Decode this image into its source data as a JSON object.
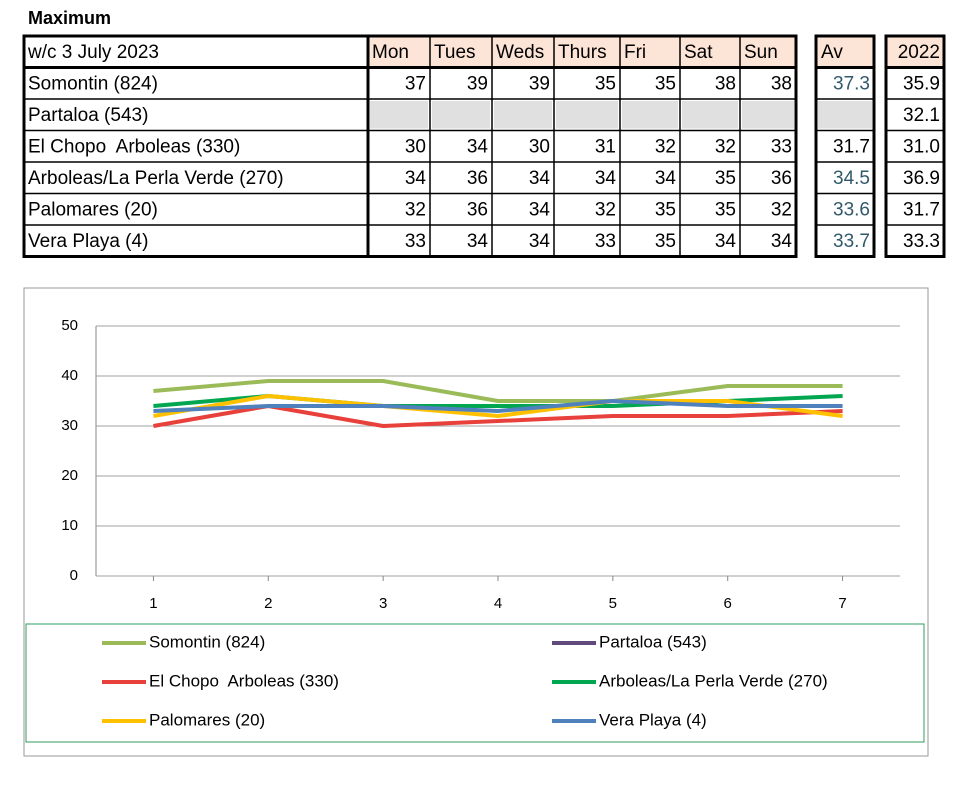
{
  "title": "Maximum",
  "table": {
    "header": [
      "w/c 3 July 2023",
      "Mon",
      "Tues",
      "Weds",
      "Thurs",
      "Fri",
      "Sat",
      "Sun"
    ],
    "av_header": "Av",
    "prev_header": "2022",
    "rows": [
      {
        "name": "Somontin (824)",
        "values": [
          37,
          39,
          39,
          35,
          35,
          38,
          38
        ],
        "av": "37.3",
        "av_color": "#31596b",
        "prev": "35.9"
      },
      {
        "name": "Partaloa (543)",
        "values": [
          null,
          null,
          null,
          null,
          null,
          null,
          null
        ],
        "av": null,
        "prev": "32.1"
      },
      {
        "name": "El Chopo  Arboleas (330)",
        "values": [
          30,
          34,
          30,
          31,
          32,
          32,
          33
        ],
        "av": "31.7",
        "av_color": "#000000",
        "prev": "31.0"
      },
      {
        "name": "Arboleas/La Perla Verde (270)",
        "values": [
          34,
          36,
          34,
          34,
          34,
          35,
          36
        ],
        "av": "34.5",
        "av_color": "#31596b",
        "prev": "36.9"
      },
      {
        "name": "Palomares (20)",
        "values": [
          32,
          36,
          34,
          32,
          35,
          35,
          32
        ],
        "av": "33.6",
        "av_color": "#31596b",
        "prev": "31.7"
      },
      {
        "name": "Vera Playa (4)",
        "values": [
          33,
          34,
          34,
          33,
          35,
          34,
          34
        ],
        "av": "33.7",
        "av_color": "#31596b",
        "prev": "33.3"
      }
    ]
  },
  "chart_data": {
    "type": "line",
    "x": [
      1,
      2,
      3,
      4,
      5,
      6,
      7
    ],
    "xlim": [
      0.5,
      7.5
    ],
    "ylim": [
      0,
      50
    ],
    "yticks": [
      0,
      10,
      20,
      30,
      40,
      50
    ],
    "grid": true,
    "legend": "bottom",
    "series": [
      {
        "name": "Somontin (824)",
        "color": "#9bbb59",
        "values": [
          37,
          39,
          39,
          35,
          35,
          38,
          38
        ]
      },
      {
        "name": "Partaloa (543)",
        "color": "#604a7b",
        "values": [
          null,
          null,
          null,
          null,
          null,
          null,
          null
        ]
      },
      {
        "name": "El Chopo  Arboleas (330)",
        "color": "#e8403a",
        "values": [
          30,
          34,
          30,
          31,
          32,
          32,
          33
        ]
      },
      {
        "name": "Arboleas/La Perla Verde (270)",
        "color": "#00a650",
        "values": [
          34,
          36,
          34,
          34,
          34,
          35,
          36
        ]
      },
      {
        "name": "Palomares (20)",
        "color": "#ffc000",
        "values": [
          32,
          36,
          34,
          32,
          35,
          35,
          32
        ]
      },
      {
        "name": "Vera Playa (4)",
        "color": "#4f81bd",
        "values": [
          33,
          34,
          34,
          33,
          35,
          34,
          34
        ]
      }
    ]
  }
}
